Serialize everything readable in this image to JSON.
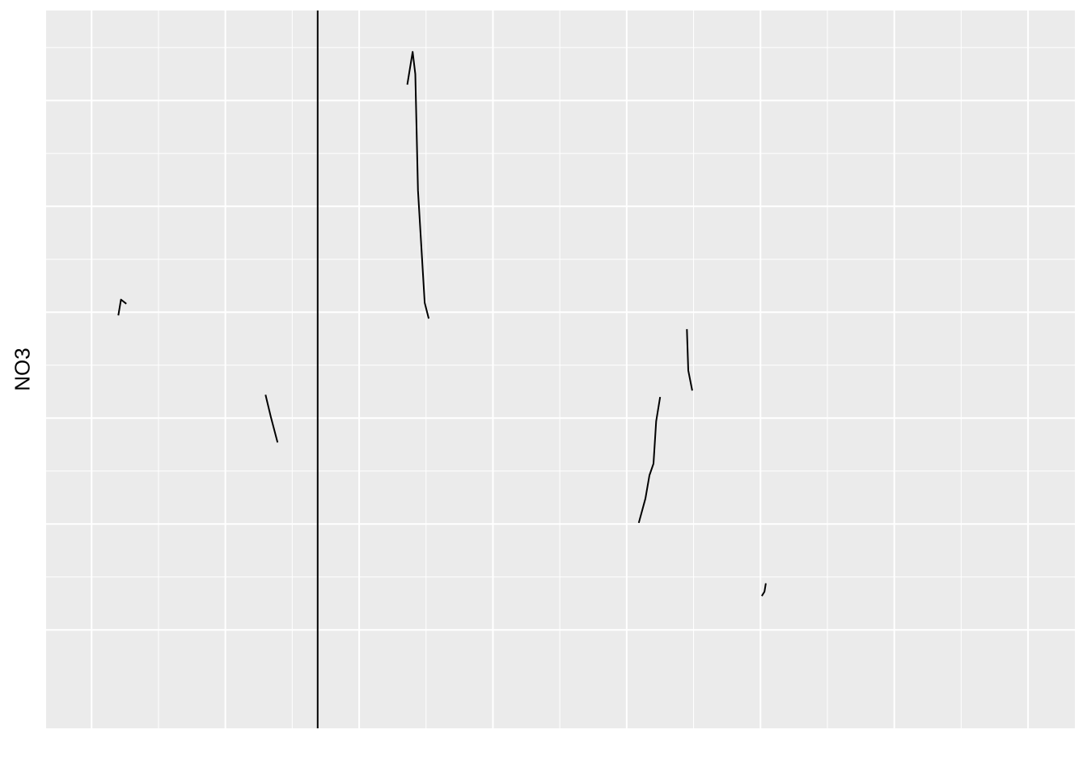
{
  "chart_data": {
    "type": "line",
    "title": "",
    "xlabel": "",
    "ylabel": "NO3",
    "xlim": [
      0,
      7.69
    ],
    "ylim": [
      -0.93,
      5.85
    ],
    "grid": true,
    "x_major_ticks": [
      0.34,
      1.34,
      2.34,
      3.34,
      4.34,
      5.34,
      6.34,
      7.34
    ],
    "x_minor_ticks": [
      0.84,
      1.84,
      2.84,
      3.84,
      4.84,
      5.84,
      6.84
    ],
    "y_major_ticks": [
      0,
      1,
      2,
      3,
      4,
      5
    ],
    "y_minor_ticks": [
      0.5,
      1.5,
      2.5,
      3.5,
      4.5,
      5.5
    ],
    "vline": {
      "x": 2.03,
      "color": "#000000"
    },
    "panel_color": "#EBEBEB",
    "grid_color": "#FFFFFF",
    "line_color": "#000000",
    "series": [
      {
        "x": [
          0.54,
          0.56,
          0.6
        ],
        "y": [
          2.97,
          3.12,
          3.08
        ]
      },
      {
        "x": [
          1.64,
          1.68,
          1.73
        ],
        "y": [
          2.22,
          2.01,
          1.77
        ]
      },
      {
        "x": [
          2.7,
          2.74,
          2.76,
          2.78,
          2.83,
          2.86
        ],
        "y": [
          5.15,
          5.46,
          5.25,
          4.15,
          3.09,
          2.94
        ]
      },
      {
        "x": [
          4.43,
          4.48,
          4.51,
          4.54,
          4.56,
          4.59
        ],
        "y": [
          1.01,
          1.24,
          1.46,
          1.57,
          1.97,
          2.2
        ]
      },
      {
        "x": [
          4.79,
          4.8,
          4.83
        ],
        "y": [
          2.84,
          2.45,
          2.26
        ]
      },
      {
        "x": [
          5.35,
          5.37,
          5.38
        ],
        "y": [
          0.32,
          0.36,
          0.44
        ]
      }
    ]
  }
}
